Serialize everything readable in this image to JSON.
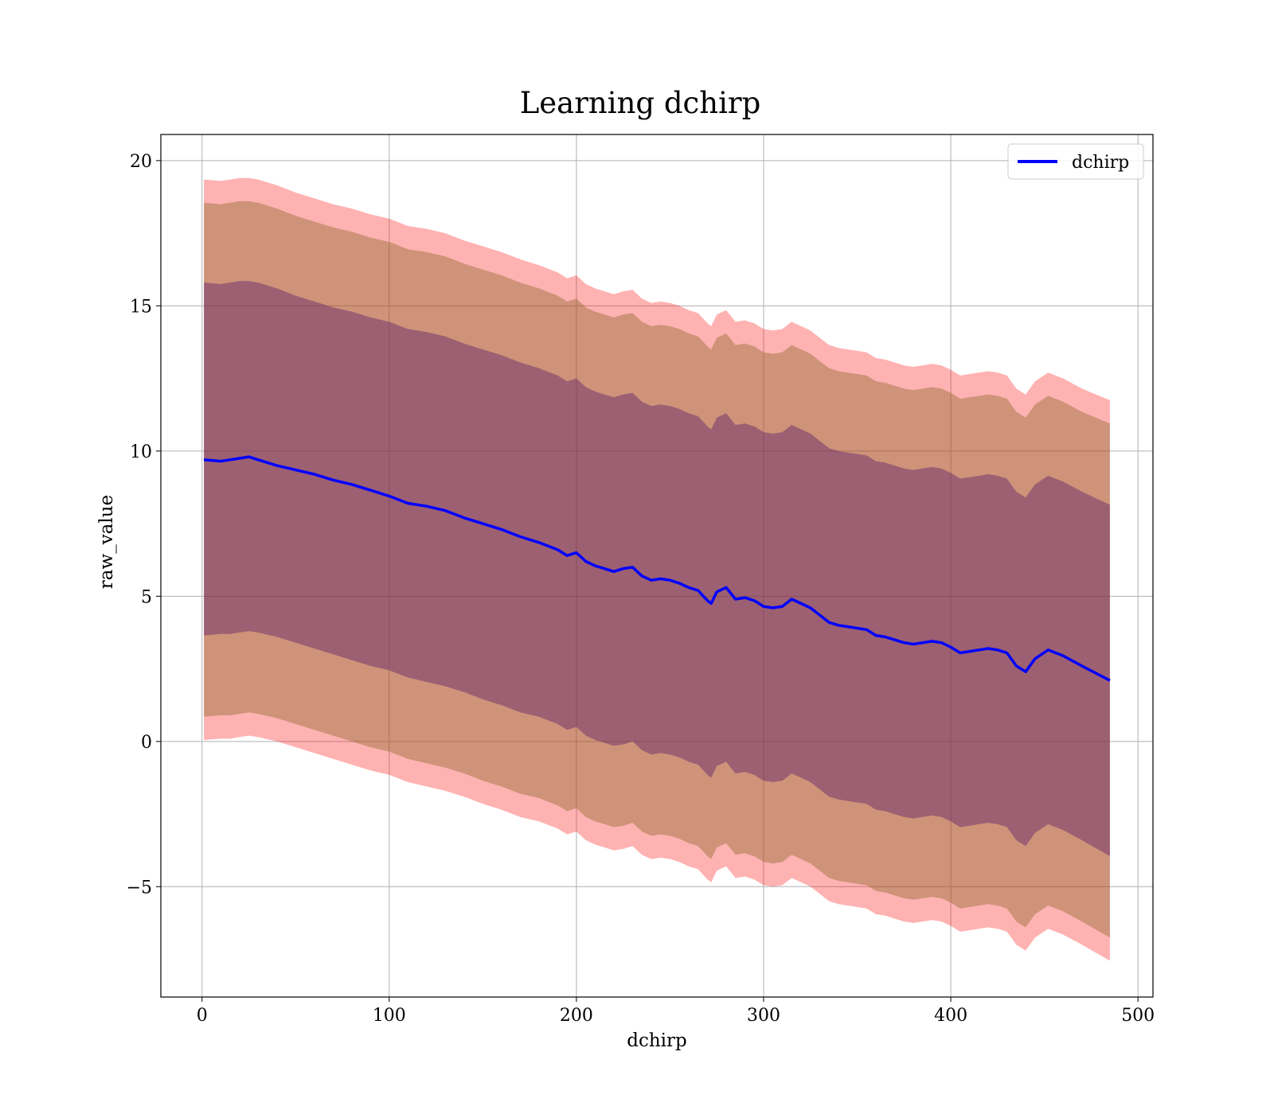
{
  "chart_data": {
    "type": "line",
    "title": "Learning dchirp",
    "xlabel": "dchirp",
    "ylabel": "raw_value",
    "xlim": [
      -22,
      508
    ],
    "ylim": [
      -8.8,
      20.9
    ],
    "xticks": [
      0,
      100,
      200,
      300,
      400,
      500
    ],
    "yticks": [
      -5,
      0,
      5,
      10,
      15,
      20
    ],
    "xtick_labels": [
      "0",
      "100",
      "200",
      "300",
      "400",
      "500"
    ],
    "ytick_labels": [
      "−5",
      "0",
      "5",
      "10",
      "15",
      "20"
    ],
    "grid": true,
    "legend": {
      "position": "top-right",
      "entries": [
        "dchirp"
      ]
    },
    "series": [
      {
        "name": "dchirp",
        "color": "#0000ff",
        "x": [
          1,
          10,
          15,
          20,
          25,
          30,
          40,
          50,
          60,
          70,
          80,
          90,
          100,
          110,
          120,
          130,
          140,
          150,
          160,
          170,
          180,
          190,
          195,
          200,
          205,
          210,
          215,
          220,
          225,
          230,
          235,
          240,
          245,
          250,
          255,
          260,
          265,
          270,
          272,
          275,
          280,
          285,
          290,
          295,
          300,
          305,
          310,
          315,
          320,
          325,
          330,
          335,
          340,
          345,
          350,
          355,
          360,
          365,
          370,
          375,
          380,
          385,
          390,
          395,
          400,
          405,
          410,
          415,
          420,
          425,
          430,
          435,
          440,
          445,
          452,
          460,
          470,
          485
        ],
        "y": [
          9.7,
          9.65,
          9.7,
          9.75,
          9.8,
          9.7,
          9.5,
          9.35,
          9.2,
          9.0,
          8.85,
          8.65,
          8.45,
          8.2,
          8.1,
          7.95,
          7.7,
          7.5,
          7.3,
          7.05,
          6.85,
          6.6,
          6.4,
          6.5,
          6.2,
          6.05,
          5.95,
          5.85,
          5.95,
          6.0,
          5.7,
          5.55,
          5.6,
          5.55,
          5.45,
          5.3,
          5.2,
          4.85,
          4.75,
          5.15,
          5.3,
          4.9,
          4.95,
          4.85,
          4.65,
          4.6,
          4.65,
          4.9,
          4.75,
          4.6,
          4.35,
          4.1,
          4.0,
          3.95,
          3.9,
          3.85,
          3.65,
          3.6,
          3.5,
          3.4,
          3.35,
          3.4,
          3.45,
          3.4,
          3.25,
          3.05,
          3.1,
          3.15,
          3.2,
          3.15,
          3.05,
          2.6,
          2.4,
          2.85,
          3.15,
          2.95,
          2.6,
          2.1
        ],
        "band_inner": [
          [
            3.65,
            15.8
          ],
          [
            3.7,
            15.75
          ],
          [
            3.7,
            15.8
          ],
          [
            3.75,
            15.85
          ],
          [
            3.8,
            15.85
          ],
          [
            3.75,
            15.8
          ],
          [
            3.6,
            15.6
          ],
          [
            3.4,
            15.35
          ],
          [
            3.2,
            15.15
          ],
          [
            3.0,
            14.95
          ],
          [
            2.8,
            14.8
          ],
          [
            2.6,
            14.6
          ],
          [
            2.45,
            14.45
          ],
          [
            2.2,
            14.2
          ],
          [
            2.05,
            14.1
          ],
          [
            1.9,
            13.95
          ],
          [
            1.7,
            13.7
          ],
          [
            1.45,
            13.5
          ],
          [
            1.25,
            13.3
          ],
          [
            1.0,
            13.05
          ],
          [
            0.85,
            12.85
          ],
          [
            0.6,
            12.6
          ],
          [
            0.4,
            12.4
          ],
          [
            0.5,
            12.5
          ],
          [
            0.2,
            12.2
          ],
          [
            0.05,
            12.05
          ],
          [
            -0.05,
            11.95
          ],
          [
            -0.15,
            11.85
          ],
          [
            -0.1,
            11.95
          ],
          [
            0.0,
            12.0
          ],
          [
            -0.3,
            11.7
          ],
          [
            -0.45,
            11.55
          ],
          [
            -0.4,
            11.6
          ],
          [
            -0.45,
            11.55
          ],
          [
            -0.55,
            11.45
          ],
          [
            -0.7,
            11.3
          ],
          [
            -0.8,
            11.2
          ],
          [
            -1.15,
            10.85
          ],
          [
            -1.25,
            10.75
          ],
          [
            -0.85,
            11.15
          ],
          [
            -0.7,
            11.3
          ],
          [
            -1.1,
            10.9
          ],
          [
            -1.05,
            10.95
          ],
          [
            -1.15,
            10.85
          ],
          [
            -1.35,
            10.65
          ],
          [
            -1.4,
            10.6
          ],
          [
            -1.35,
            10.65
          ],
          [
            -1.1,
            10.9
          ],
          [
            -1.25,
            10.75
          ],
          [
            -1.4,
            10.6
          ],
          [
            -1.65,
            10.35
          ],
          [
            -1.9,
            10.1
          ],
          [
            -2.0,
            10.0
          ],
          [
            -2.05,
            9.95
          ],
          [
            -2.1,
            9.9
          ],
          [
            -2.15,
            9.85
          ],
          [
            -2.35,
            9.65
          ],
          [
            -2.4,
            9.6
          ],
          [
            -2.5,
            9.5
          ],
          [
            -2.6,
            9.4
          ],
          [
            -2.65,
            9.35
          ],
          [
            -2.6,
            9.4
          ],
          [
            -2.55,
            9.45
          ],
          [
            -2.6,
            9.4
          ],
          [
            -2.75,
            9.25
          ],
          [
            -2.95,
            9.05
          ],
          [
            -2.9,
            9.1
          ],
          [
            -2.85,
            9.15
          ],
          [
            -2.8,
            9.2
          ],
          [
            -2.85,
            9.15
          ],
          [
            -2.95,
            9.05
          ],
          [
            -3.4,
            8.6
          ],
          [
            -3.6,
            8.4
          ],
          [
            -3.15,
            8.85
          ],
          [
            -2.85,
            9.15
          ],
          [
            -3.05,
            8.95
          ],
          [
            -3.4,
            8.6
          ],
          [
            -3.95,
            8.15
          ]
        ],
        "band_middle": [
          [
            0.85,
            18.55
          ],
          [
            0.9,
            18.5
          ],
          [
            0.9,
            18.55
          ],
          [
            0.95,
            18.6
          ],
          [
            1.0,
            18.6
          ],
          [
            0.95,
            18.55
          ],
          [
            0.8,
            18.35
          ],
          [
            0.6,
            18.1
          ],
          [
            0.4,
            17.9
          ],
          [
            0.2,
            17.7
          ],
          [
            0.0,
            17.55
          ],
          [
            -0.2,
            17.35
          ],
          [
            -0.35,
            17.2
          ],
          [
            -0.6,
            16.95
          ],
          [
            -0.75,
            16.85
          ],
          [
            -0.9,
            16.7
          ],
          [
            -1.1,
            16.45
          ],
          [
            -1.35,
            16.25
          ],
          [
            -1.55,
            16.05
          ],
          [
            -1.8,
            15.8
          ],
          [
            -1.95,
            15.6
          ],
          [
            -2.2,
            15.35
          ],
          [
            -2.4,
            15.15
          ],
          [
            -2.3,
            15.25
          ],
          [
            -2.6,
            14.95
          ],
          [
            -2.75,
            14.8
          ],
          [
            -2.85,
            14.7
          ],
          [
            -2.95,
            14.6
          ],
          [
            -2.9,
            14.7
          ],
          [
            -2.8,
            14.75
          ],
          [
            -3.1,
            14.45
          ],
          [
            -3.25,
            14.3
          ],
          [
            -3.2,
            14.35
          ],
          [
            -3.25,
            14.3
          ],
          [
            -3.35,
            14.2
          ],
          [
            -3.5,
            14.05
          ],
          [
            -3.6,
            13.95
          ],
          [
            -3.95,
            13.6
          ],
          [
            -4.05,
            13.5
          ],
          [
            -3.65,
            13.9
          ],
          [
            -3.5,
            14.05
          ],
          [
            -3.9,
            13.65
          ],
          [
            -3.85,
            13.7
          ],
          [
            -3.95,
            13.6
          ],
          [
            -4.15,
            13.4
          ],
          [
            -4.2,
            13.35
          ],
          [
            -4.15,
            13.4
          ],
          [
            -3.9,
            13.65
          ],
          [
            -4.05,
            13.5
          ],
          [
            -4.2,
            13.35
          ],
          [
            -4.45,
            13.1
          ],
          [
            -4.7,
            12.85
          ],
          [
            -4.8,
            12.75
          ],
          [
            -4.85,
            12.7
          ],
          [
            -4.9,
            12.65
          ],
          [
            -4.95,
            12.6
          ],
          [
            -5.15,
            12.4
          ],
          [
            -5.2,
            12.35
          ],
          [
            -5.3,
            12.25
          ],
          [
            -5.4,
            12.15
          ],
          [
            -5.45,
            12.1
          ],
          [
            -5.4,
            12.15
          ],
          [
            -5.35,
            12.2
          ],
          [
            -5.4,
            12.15
          ],
          [
            -5.55,
            12.0
          ],
          [
            -5.75,
            11.8
          ],
          [
            -5.7,
            11.85
          ],
          [
            -5.65,
            11.9
          ],
          [
            -5.6,
            11.95
          ],
          [
            -5.65,
            11.9
          ],
          [
            -5.75,
            11.8
          ],
          [
            -6.2,
            11.35
          ],
          [
            -6.4,
            11.15
          ],
          [
            -5.95,
            11.6
          ],
          [
            -5.65,
            11.9
          ],
          [
            -5.85,
            11.7
          ],
          [
            -6.2,
            11.35
          ],
          [
            -6.75,
            10.95
          ]
        ],
        "band_outer": [
          [
            0.05,
            19.35
          ],
          [
            0.1,
            19.3
          ],
          [
            0.1,
            19.35
          ],
          [
            0.15,
            19.4
          ],
          [
            0.2,
            19.4
          ],
          [
            0.15,
            19.35
          ],
          [
            0.0,
            19.15
          ],
          [
            -0.2,
            18.9
          ],
          [
            -0.4,
            18.7
          ],
          [
            -0.6,
            18.5
          ],
          [
            -0.8,
            18.35
          ],
          [
            -1.0,
            18.15
          ],
          [
            -1.15,
            18.0
          ],
          [
            -1.4,
            17.75
          ],
          [
            -1.55,
            17.65
          ],
          [
            -1.7,
            17.5
          ],
          [
            -1.9,
            17.25
          ],
          [
            -2.15,
            17.05
          ],
          [
            -2.35,
            16.85
          ],
          [
            -2.6,
            16.6
          ],
          [
            -2.75,
            16.4
          ],
          [
            -3.0,
            16.15
          ],
          [
            -3.2,
            15.95
          ],
          [
            -3.1,
            16.05
          ],
          [
            -3.4,
            15.75
          ],
          [
            -3.55,
            15.6
          ],
          [
            -3.65,
            15.5
          ],
          [
            -3.75,
            15.4
          ],
          [
            -3.7,
            15.5
          ],
          [
            -3.6,
            15.55
          ],
          [
            -3.9,
            15.25
          ],
          [
            -4.05,
            15.1
          ],
          [
            -4.0,
            15.15
          ],
          [
            -4.05,
            15.1
          ],
          [
            -4.15,
            15.0
          ],
          [
            -4.3,
            14.85
          ],
          [
            -4.4,
            14.75
          ],
          [
            -4.75,
            14.4
          ],
          [
            -4.85,
            14.3
          ],
          [
            -4.45,
            14.7
          ],
          [
            -4.3,
            14.85
          ],
          [
            -4.7,
            14.45
          ],
          [
            -4.65,
            14.5
          ],
          [
            -4.75,
            14.4
          ],
          [
            -4.95,
            14.2
          ],
          [
            -5.0,
            14.15
          ],
          [
            -4.95,
            14.2
          ],
          [
            -4.7,
            14.45
          ],
          [
            -4.85,
            14.3
          ],
          [
            -5.0,
            14.15
          ],
          [
            -5.25,
            13.9
          ],
          [
            -5.5,
            13.65
          ],
          [
            -5.6,
            13.55
          ],
          [
            -5.65,
            13.5
          ],
          [
            -5.7,
            13.45
          ],
          [
            -5.75,
            13.4
          ],
          [
            -5.95,
            13.2
          ],
          [
            -6.0,
            13.15
          ],
          [
            -6.1,
            13.05
          ],
          [
            -6.2,
            12.95
          ],
          [
            -6.25,
            12.9
          ],
          [
            -6.2,
            12.95
          ],
          [
            -6.15,
            13.0
          ],
          [
            -6.2,
            12.95
          ],
          [
            -6.35,
            12.8
          ],
          [
            -6.55,
            12.6
          ],
          [
            -6.5,
            12.65
          ],
          [
            -6.45,
            12.7
          ],
          [
            -6.4,
            12.75
          ],
          [
            -6.45,
            12.7
          ],
          [
            -6.55,
            12.6
          ],
          [
            -7.0,
            12.15
          ],
          [
            -7.2,
            11.95
          ],
          [
            -6.75,
            12.4
          ],
          [
            -6.45,
            12.7
          ],
          [
            -6.65,
            12.5
          ],
          [
            -7.0,
            12.15
          ],
          [
            -7.55,
            11.75
          ]
        ]
      }
    ]
  }
}
